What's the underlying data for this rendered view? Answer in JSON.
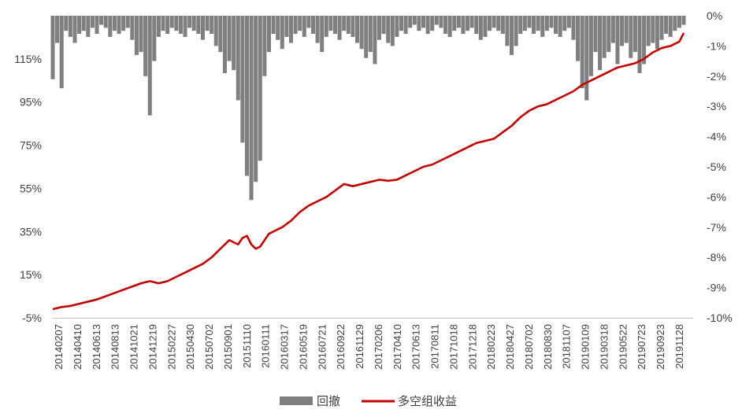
{
  "chart_data": {
    "type": "line+bar",
    "left_axis": {
      "ticks": [
        "115%",
        "95%",
        "75%",
        "55%",
        "35%",
        "15%",
        "-5%"
      ],
      "values": [
        115,
        95,
        75,
        55,
        35,
        15,
        -5
      ],
      "range": [
        -5,
        135
      ]
    },
    "right_axis": {
      "ticks": [
        "0%",
        "-1%",
        "-2%",
        "-3%",
        "-4%",
        "-5%",
        "-6%",
        "-7%",
        "-8%",
        "-9%",
        "-10%"
      ],
      "values": [
        0,
        -1,
        -2,
        -3,
        -4,
        -5,
        -6,
        -7,
        -8,
        -9,
        -10
      ],
      "range": [
        -10,
        0
      ]
    },
    "x_ticks": [
      "20140207",
      "20140410",
      "20140613",
      "20140813",
      "20141021",
      "20141219",
      "20150227",
      "20150430",
      "20150702",
      "20150901",
      "20151110",
      "20160111",
      "20160317",
      "20160519",
      "20160721",
      "20160922",
      "20161129",
      "20170206",
      "20170410",
      "20170613",
      "20170811",
      "20171018",
      "20171218",
      "20180223",
      "20180427",
      "20180702",
      "20180830",
      "20181107",
      "20190109",
      "20190318",
      "20190522",
      "20190723",
      "20190923",
      "20191128"
    ],
    "series": [
      {
        "name": "多空组收益",
        "axis": "left",
        "color": "#C00000",
        "points": [
          [
            0,
            -1
          ],
          [
            2,
            0
          ],
          [
            4,
            0.5
          ],
          [
            6,
            1.5
          ],
          [
            8,
            2.5
          ],
          [
            10,
            3.5
          ],
          [
            12,
            5
          ],
          [
            14,
            6.5
          ],
          [
            16,
            8
          ],
          [
            18,
            9.5
          ],
          [
            20,
            11
          ],
          [
            22,
            12
          ],
          [
            24,
            11
          ],
          [
            26,
            12
          ],
          [
            28,
            14
          ],
          [
            30,
            16
          ],
          [
            32,
            18
          ],
          [
            34,
            20
          ],
          [
            36,
            23
          ],
          [
            38,
            27
          ],
          [
            40,
            31
          ],
          [
            41,
            30
          ],
          [
            42,
            29
          ],
          [
            43,
            32
          ],
          [
            44,
            33
          ],
          [
            45,
            29
          ],
          [
            46,
            27
          ],
          [
            47,
            28
          ],
          [
            48,
            31
          ],
          [
            49,
            34
          ],
          [
            50,
            35
          ],
          [
            52,
            37
          ],
          [
            54,
            40
          ],
          [
            56,
            44
          ],
          [
            58,
            47
          ],
          [
            60,
            49
          ],
          [
            62,
            51
          ],
          [
            64,
            54
          ],
          [
            66,
            57
          ],
          [
            68,
            56
          ],
          [
            70,
            57
          ],
          [
            72,
            58
          ],
          [
            74,
            59
          ],
          [
            76,
            58.5
          ],
          [
            78,
            59
          ],
          [
            80,
            61
          ],
          [
            82,
            63
          ],
          [
            84,
            65
          ],
          [
            86,
            66
          ],
          [
            88,
            68
          ],
          [
            90,
            70
          ],
          [
            92,
            72
          ],
          [
            94,
            74
          ],
          [
            96,
            76
          ],
          [
            98,
            77
          ],
          [
            100,
            78
          ],
          [
            102,
            81
          ],
          [
            104,
            84
          ],
          [
            106,
            88
          ],
          [
            108,
            91
          ],
          [
            110,
            93
          ],
          [
            112,
            94
          ],
          [
            114,
            96
          ],
          [
            116,
            98
          ],
          [
            118,
            100
          ],
          [
            120,
            103
          ],
          [
            122,
            105
          ],
          [
            124,
            107
          ],
          [
            126,
            109
          ],
          [
            128,
            111
          ],
          [
            130,
            112
          ],
          [
            132,
            113
          ],
          [
            134,
            115
          ],
          [
            136,
            118
          ],
          [
            138,
            120
          ],
          [
            140,
            121
          ],
          [
            142,
            123
          ],
          [
            143,
            127
          ]
        ]
      },
      {
        "name": "回撤",
        "axis": "right",
        "color": "#7F7F7F",
        "points": [
          [
            0,
            -2.1
          ],
          [
            1,
            -0.9
          ],
          [
            2,
            -2.4
          ],
          [
            3,
            -0.5
          ],
          [
            4,
            -0.7
          ],
          [
            5,
            -0.9
          ],
          [
            6,
            -0.6
          ],
          [
            7,
            -0.5
          ],
          [
            8,
            -0.7
          ],
          [
            9,
            -0.4
          ],
          [
            10,
            -0.6
          ],
          [
            11,
            -0.3
          ],
          [
            12,
            -0.4
          ],
          [
            13,
            -0.7
          ],
          [
            14,
            -0.5
          ],
          [
            15,
            -0.6
          ],
          [
            16,
            -0.5
          ],
          [
            17,
            -0.4
          ],
          [
            18,
            -0.8
          ],
          [
            19,
            -1.3
          ],
          [
            20,
            -1.2
          ],
          [
            21,
            -2.0
          ],
          [
            22,
            -3.3
          ],
          [
            23,
            -1.5
          ],
          [
            24,
            -0.7
          ],
          [
            25,
            -0.5
          ],
          [
            26,
            -0.6
          ],
          [
            27,
            -0.4
          ],
          [
            28,
            -0.5
          ],
          [
            29,
            -0.6
          ],
          [
            30,
            -0.7
          ],
          [
            31,
            -0.4
          ],
          [
            32,
            -0.5
          ],
          [
            33,
            -0.6
          ],
          [
            34,
            -0.8
          ],
          [
            35,
            -0.5
          ],
          [
            36,
            -0.6
          ],
          [
            37,
            -1.0
          ],
          [
            38,
            -1.2
          ],
          [
            39,
            -1.9
          ],
          [
            40,
            -1.5
          ],
          [
            41,
            -1.8
          ],
          [
            42,
            -2.8
          ],
          [
            43,
            -4.2
          ],
          [
            44,
            -5.3
          ],
          [
            45,
            -6.1
          ],
          [
            46,
            -5.5
          ],
          [
            47,
            -4.8
          ],
          [
            48,
            -2.0
          ],
          [
            49,
            -1.2
          ],
          [
            50,
            -0.6
          ],
          [
            51,
            -0.8
          ],
          [
            52,
            -1.1
          ],
          [
            53,
            -0.7
          ],
          [
            54,
            -0.9
          ],
          [
            55,
            -0.6
          ],
          [
            56,
            -0.5
          ],
          [
            57,
            -0.7
          ],
          [
            58,
            -0.4
          ],
          [
            59,
            -0.6
          ],
          [
            60,
            -0.9
          ],
          [
            61,
            -1.2
          ],
          [
            62,
            -0.7
          ],
          [
            63,
            -0.5
          ],
          [
            64,
            -0.6
          ],
          [
            65,
            -0.8
          ],
          [
            66,
            -0.5
          ],
          [
            67,
            -0.6
          ],
          [
            68,
            -0.7
          ],
          [
            69,
            -0.9
          ],
          [
            70,
            -1.1
          ],
          [
            71,
            -1.4
          ],
          [
            72,
            -1.2
          ],
          [
            73,
            -1.6
          ],
          [
            74,
            -0.8
          ],
          [
            75,
            -0.6
          ],
          [
            76,
            -0.9
          ],
          [
            77,
            -1.0
          ],
          [
            78,
            -0.7
          ],
          [
            79,
            -0.5
          ],
          [
            80,
            -0.6
          ],
          [
            81,
            -0.4
          ],
          [
            82,
            -0.3
          ],
          [
            83,
            -0.5
          ],
          [
            84,
            -0.4
          ],
          [
            85,
            -0.6
          ],
          [
            86,
            -0.5
          ],
          [
            87,
            -0.3
          ],
          [
            88,
            -0.4
          ],
          [
            89,
            -0.6
          ],
          [
            90,
            -0.7
          ],
          [
            91,
            -0.5
          ],
          [
            92,
            -0.4
          ],
          [
            93,
            -0.6
          ],
          [
            94,
            -0.5
          ],
          [
            95,
            -0.4
          ],
          [
            96,
            -0.6
          ],
          [
            97,
            -0.8
          ],
          [
            98,
            -0.7
          ],
          [
            99,
            -0.5
          ],
          [
            100,
            -0.4
          ],
          [
            101,
            -0.5
          ],
          [
            102,
            -0.6
          ],
          [
            103,
            -1.0
          ],
          [
            104,
            -1.3
          ],
          [
            105,
            -1.0
          ],
          [
            106,
            -0.6
          ],
          [
            107,
            -0.5
          ],
          [
            108,
            -0.4
          ],
          [
            109,
            -0.6
          ],
          [
            110,
            -0.5
          ],
          [
            111,
            -0.7
          ],
          [
            112,
            -0.5
          ],
          [
            113,
            -0.4
          ],
          [
            114,
            -0.6
          ],
          [
            115,
            -0.7
          ],
          [
            116,
            -0.5
          ],
          [
            117,
            -0.4
          ],
          [
            118,
            -0.8
          ],
          [
            119,
            -1.5
          ],
          [
            120,
            -2.4
          ],
          [
            121,
            -2.8
          ],
          [
            122,
            -2.0
          ],
          [
            123,
            -1.2
          ],
          [
            124,
            -1.8
          ],
          [
            125,
            -1.4
          ],
          [
            126,
            -1.2
          ],
          [
            127,
            -0.9
          ],
          [
            128,
            -1.6
          ],
          [
            129,
            -1.0
          ],
          [
            130,
            -0.9
          ],
          [
            131,
            -1.4
          ],
          [
            132,
            -1.2
          ],
          [
            133,
            -1.9
          ],
          [
            134,
            -1.6
          ],
          [
            135,
            -1.0
          ],
          [
            136,
            -0.9
          ],
          [
            137,
            -1.1
          ],
          [
            138,
            -0.8
          ],
          [
            139,
            -0.6
          ],
          [
            140,
            -0.7
          ],
          [
            141,
            -0.5
          ],
          [
            142,
            -0.4
          ],
          [
            143,
            -0.3
          ]
        ]
      }
    ],
    "legend": {
      "placement": "bottom-center",
      "items": [
        {
          "label": "回撤",
          "color": "#7F7F7F",
          "kind": "bar"
        },
        {
          "label": "多空组收益",
          "color": "#C00000",
          "kind": "line"
        }
      ]
    },
    "x_range": [
      0,
      143
    ]
  }
}
